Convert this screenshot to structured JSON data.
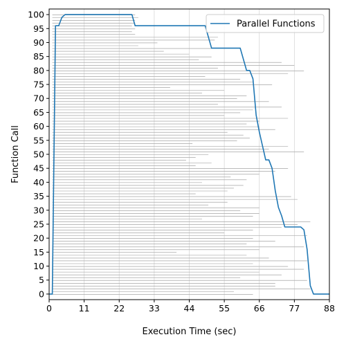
{
  "chart_data": {
    "type": "line",
    "xlabel": "Execution Time (sec)",
    "ylabel": "Function Call",
    "xlim": [
      0,
      88
    ],
    "ylim": [
      -2,
      102
    ],
    "x_ticks": [
      0,
      11,
      22,
      33,
      44,
      55,
      66,
      77,
      88
    ],
    "y_ticks": [
      0,
      5,
      10,
      15,
      20,
      25,
      30,
      35,
      40,
      45,
      50,
      55,
      60,
      65,
      70,
      75,
      80,
      85,
      90,
      95,
      100
    ],
    "grid": true,
    "legend": {
      "placement": "top-right",
      "entries": [
        "Parallel Functions"
      ]
    },
    "series": [
      {
        "name": "Parallel Functions",
        "color": "#1f77b4",
        "x": [
          0,
          1,
          2,
          3,
          4,
          5,
          26,
          27,
          49,
          51,
          55,
          60,
          62,
          63,
          64,
          65,
          66,
          67,
          68,
          69,
          70,
          71,
          72,
          73,
          74,
          79,
          80,
          81,
          82,
          83,
          88
        ],
        "y": [
          0,
          0,
          96,
          96,
          99,
          100,
          100,
          96,
          96,
          88,
          88,
          88,
          80,
          80,
          77,
          64,
          58,
          53,
          48,
          48,
          45,
          37,
          31,
          28,
          24,
          24,
          23,
          16,
          3,
          0,
          0
        ]
      }
    ],
    "function_bars": {
      "color": "#808080",
      "start": 1,
      "ends": [
        64,
        58,
        82,
        71,
        71,
        81,
        60,
        73,
        66,
        80,
        75,
        64,
        81,
        69,
        62,
        40,
        66,
        80,
        62,
        71,
        64,
        81,
        55,
        64,
        73,
        78,
        82,
        48,
        64,
        66,
        60,
        66,
        50,
        56,
        78,
        76,
        46,
        56,
        58,
        61,
        48,
        62,
        57,
        66,
        71,
        75,
        46,
        51,
        43,
        46,
        50,
        80,
        69,
        75,
        45,
        59,
        63,
        61,
        56,
        71,
        66,
        62,
        66,
        75,
        55,
        60,
        64,
        73,
        53,
        69,
        59,
        62,
        48,
        55,
        38,
        70,
        64,
        60,
        49,
        75,
        80,
        53,
        77,
        73,
        47,
        51,
        44,
        36,
        51,
        28,
        34,
        52,
        53,
        27,
        26,
        27,
        26,
        27,
        27,
        28,
        27
      ]
    }
  }
}
